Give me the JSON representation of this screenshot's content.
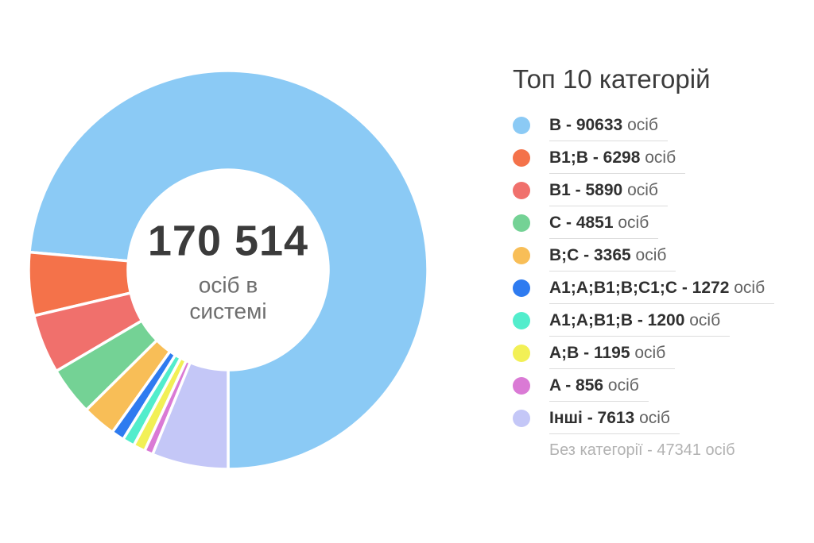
{
  "chart_data": {
    "type": "pie",
    "subtype": "donut",
    "title": "Топ 10 категорій",
    "unit": "осіб",
    "center": {
      "value": "170 514",
      "label": "осіб в системі"
    },
    "series": [
      {
        "label": "B",
        "value": 90633,
        "color": "#8BCAF5"
      },
      {
        "label": "B1;B",
        "value": 6298,
        "color": "#F4724A"
      },
      {
        "label": "B1",
        "value": 5890,
        "color": "#F0706C"
      },
      {
        "label": "C",
        "value": 4851,
        "color": "#74D295"
      },
      {
        "label": "B;C",
        "value": 3365,
        "color": "#F8BE57"
      },
      {
        "label": "A1;A;B1;B;C1;C",
        "value": 1272,
        "color": "#2E7BF0"
      },
      {
        "label": "A1;A;B1;B",
        "value": 1200,
        "color": "#52EDCC"
      },
      {
        "label": "A;B",
        "value": 1195,
        "color": "#F2F056"
      },
      {
        "label": "A",
        "value": 856,
        "color": "#DA7AD5"
      },
      {
        "label": "Інші",
        "value": 7613,
        "color": "#C4C7F7"
      }
    ],
    "uncategorized": {
      "label": "Без категорії",
      "value": 47341
    },
    "format": {
      "separator": " - "
    },
    "layout": {
      "legend_position": "right",
      "start_angle_deg": 180,
      "direction": "counterclockwise",
      "donut_hole_ratio": 0.5,
      "gap_color": "#FFFFFF",
      "background": "#FFFFFF"
    }
  }
}
